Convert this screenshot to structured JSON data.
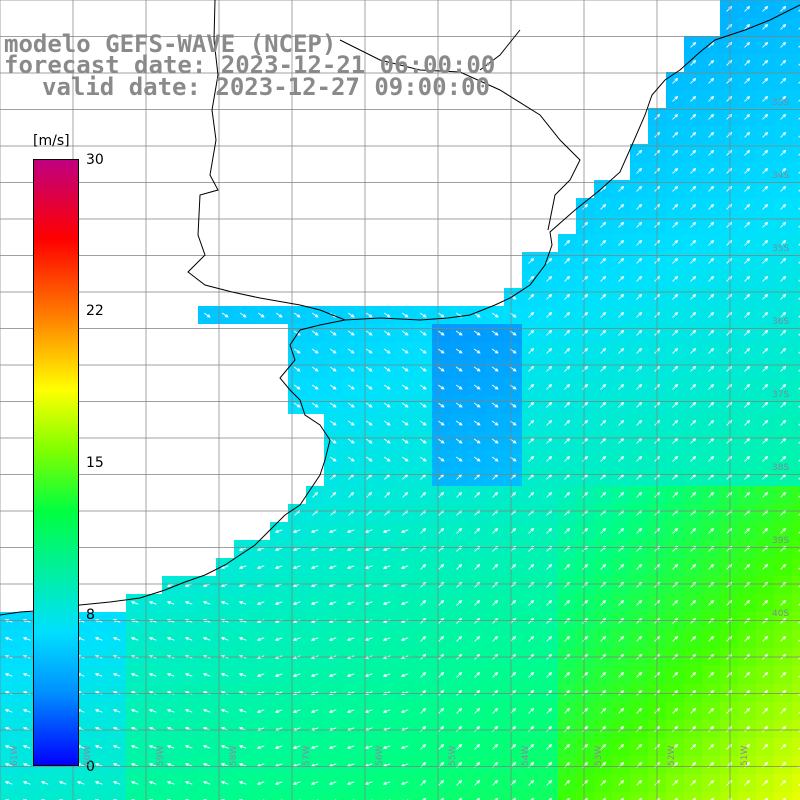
{
  "header": {
    "title_line1": "modelo GEFS-WAVE (NCEP)",
    "title_line2": "forecast date: 2023-12-21 06:00:00",
    "title_line3": "valid date: 2023-12-27 09:00:00"
  },
  "colorbar": {
    "unit": "[m/s]",
    "ticks": [
      "30",
      "22",
      "15",
      "8",
      "0"
    ],
    "colors": [
      "#0000ff",
      "#0090ff",
      "#00e0ff",
      "#00ff40",
      "#80ff00",
      "#ffff00",
      "#ff8000",
      "#ff0000",
      "#c00080"
    ]
  },
  "map": {
    "land_color": "#ffffff",
    "grid_color": "#808080",
    "coast_color": "#000000",
    "arrow_color": "#ffffff",
    "lon_labels": [
      "61W",
      "60W",
      "59W",
      "58W",
      "57W",
      "56W",
      "55W",
      "54W",
      "53W",
      "52W",
      "51W"
    ],
    "lat_labels": [
      "33S",
      "34S",
      "35S",
      "36S",
      "37S",
      "38S",
      "39S",
      "40S"
    ]
  }
}
